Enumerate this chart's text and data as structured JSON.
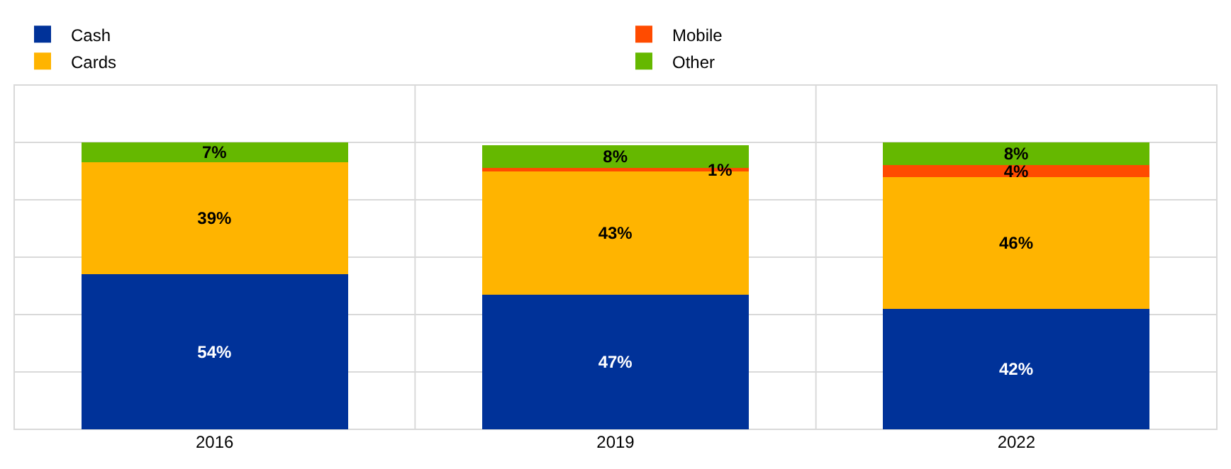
{
  "chart_data": {
    "type": "bar",
    "stacked": true,
    "categories": [
      "2016",
      "2019",
      "2022"
    ],
    "series": [
      {
        "name": "Cash",
        "color": "#003299",
        "values": [
          54,
          47,
          42
        ],
        "value_labels": [
          "54%",
          "47%",
          "42%"
        ]
      },
      {
        "name": "Cards",
        "color": "#ffb400",
        "values": [
          39,
          43,
          46
        ],
        "value_labels": [
          "39%",
          "43%",
          "46%"
        ]
      },
      {
        "name": "Mobile",
        "color": "#ff4b00",
        "values": [
          null,
          1,
          4
        ],
        "value_labels": [
          null,
          "1%",
          "4%"
        ]
      },
      {
        "name": "Other",
        "color": "#65b800",
        "values": [
          7,
          8,
          8
        ],
        "value_labels": [
          "7%",
          "8%",
          "8%"
        ]
      }
    ],
    "ylim": [
      0,
      120
    ],
    "yticks": [
      {
        "value": 0,
        "label": null
      },
      {
        "value": 20,
        "label": null
      },
      {
        "value": 40,
        "label": null
      },
      {
        "value": 60,
        "label": null
      },
      {
        "value": 80,
        "label": null
      },
      {
        "value": 100,
        "label": null
      },
      {
        "value": 120,
        "label": null
      }
    ],
    "grid": true,
    "legend": "top",
    "tick_labels": "x"
  }
}
